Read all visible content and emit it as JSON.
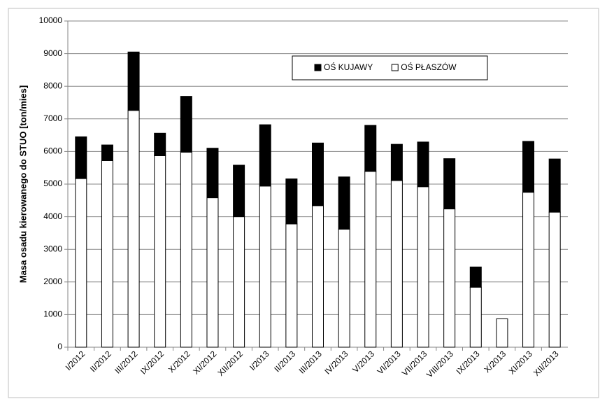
{
  "chart_data": {
    "type": "stacked_bar",
    "y_label": "Masa osadu kierowanego do STUO [ton/mies]",
    "categories": [
      "I/2012",
      "II/2012",
      "III/2012",
      "IX/2012",
      "X/2012",
      "XI/2012",
      "XII/2012",
      "I/2013",
      "II/2013",
      "III/2013",
      "IV/2013",
      "V/2013",
      "VI/2013",
      "VII/2013",
      "VIII/2013",
      "IX/2013",
      "X/2013",
      "XI/2013",
      "XII/2013"
    ],
    "series": [
      {
        "name": "OŚ PŁASZÓW",
        "color": "#ffffff",
        "values": [
          5170,
          5720,
          7260,
          5870,
          5980,
          4580,
          4000,
          4940,
          3780,
          4340,
          3620,
          5390,
          5110,
          4920,
          4240,
          1840,
          870,
          4750,
          4140
        ]
      },
      {
        "name": "OŚ KUJAWY",
        "color": "#000000",
        "values": [
          1280,
          480,
          1790,
          690,
          1710,
          1520,
          1580,
          1880,
          1380,
          1920,
          1600,
          1410,
          1110,
          1370,
          1540,
          620,
          0,
          1560,
          1630
        ]
      }
    ],
    "ylim": [
      0,
      10000
    ],
    "yticks": [
      0,
      1000,
      2000,
      3000,
      4000,
      5000,
      6000,
      7000,
      8000,
      9000,
      10000
    ],
    "grid": true
  }
}
